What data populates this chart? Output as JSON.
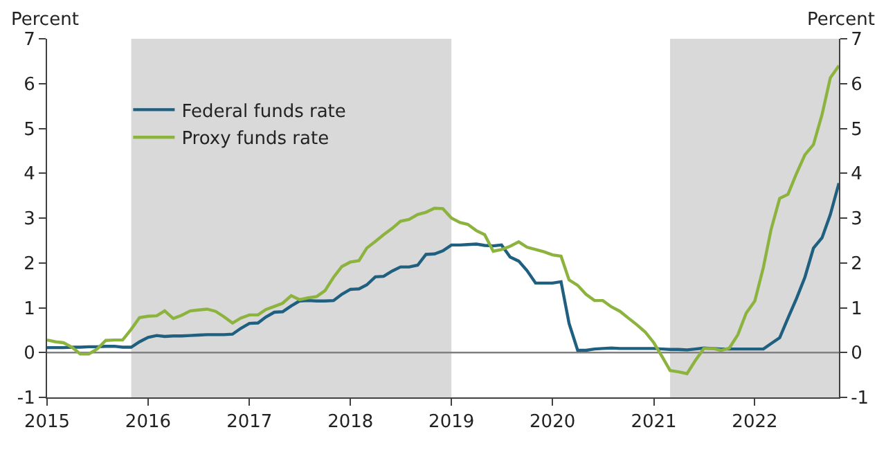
{
  "chart_data": {
    "type": "line",
    "ylabel": "Percent",
    "y2label": "Percent",
    "x": [
      "2015-01",
      "2015-02",
      "2015-03",
      "2015-04",
      "2015-05",
      "2015-06",
      "2015-07",
      "2015-08",
      "2015-09",
      "2015-10",
      "2015-11",
      "2015-12",
      "2016-01",
      "2016-02",
      "2016-03",
      "2016-04",
      "2016-05",
      "2016-06",
      "2016-07",
      "2016-08",
      "2016-09",
      "2016-10",
      "2016-11",
      "2016-12",
      "2017-01",
      "2017-02",
      "2017-03",
      "2017-04",
      "2017-05",
      "2017-06",
      "2017-07",
      "2017-08",
      "2017-09",
      "2017-10",
      "2017-11",
      "2017-12",
      "2018-01",
      "2018-02",
      "2018-03",
      "2018-04",
      "2018-05",
      "2018-06",
      "2018-07",
      "2018-08",
      "2018-09",
      "2018-10",
      "2018-11",
      "2018-12",
      "2019-01",
      "2019-02",
      "2019-03",
      "2019-04",
      "2019-05",
      "2019-06",
      "2019-07",
      "2019-08",
      "2019-09",
      "2019-10",
      "2019-11",
      "2019-12",
      "2020-01",
      "2020-02",
      "2020-03",
      "2020-04",
      "2020-05",
      "2020-06",
      "2020-07",
      "2020-08",
      "2020-09",
      "2020-10",
      "2020-11",
      "2020-12",
      "2021-01",
      "2021-02",
      "2021-03",
      "2021-04",
      "2021-05",
      "2021-06",
      "2021-07",
      "2021-08",
      "2021-09",
      "2021-10",
      "2021-11",
      "2021-12",
      "2022-01",
      "2022-02",
      "2022-03",
      "2022-04",
      "2022-05",
      "2022-06",
      "2022-07",
      "2022-08",
      "2022-09",
      "2022-10",
      "2022-11"
    ],
    "series": [
      {
        "name": "Federal funds rate",
        "color": "#1f5f7f",
        "values": [
          0.11,
          0.11,
          0.11,
          0.12,
          0.12,
          0.13,
          0.13,
          0.14,
          0.14,
          0.12,
          0.12,
          0.24,
          0.34,
          0.38,
          0.36,
          0.37,
          0.37,
          0.38,
          0.39,
          0.4,
          0.4,
          0.4,
          0.41,
          0.54,
          0.65,
          0.66,
          0.79,
          0.9,
          0.91,
          1.04,
          1.15,
          1.16,
          1.15,
          1.15,
          1.16,
          1.3,
          1.41,
          1.42,
          1.51,
          1.69,
          1.7,
          1.82,
          1.91,
          1.91,
          1.95,
          2.19,
          2.2,
          2.27,
          2.4,
          2.4,
          2.41,
          2.42,
          2.39,
          2.38,
          2.4,
          2.13,
          2.04,
          1.83,
          1.55,
          1.55,
          1.55,
          1.58,
          0.65,
          0.05,
          0.05,
          0.08,
          0.09,
          0.1,
          0.09,
          0.09,
          0.09,
          0.09,
          0.09,
          0.08,
          0.07,
          0.07,
          0.06,
          0.08,
          0.1,
          0.09,
          0.08,
          0.08,
          0.08,
          0.08,
          0.08,
          0.08,
          0.2,
          0.33,
          0.77,
          1.21,
          1.68,
          2.33,
          2.56,
          3.08,
          3.78
        ]
      },
      {
        "name": "Proxy funds rate",
        "color": "#8db33f",
        "values": [
          0.28,
          0.24,
          0.22,
          0.12,
          -0.03,
          -0.03,
          0.08,
          0.27,
          0.28,
          0.28,
          0.52,
          0.78,
          0.81,
          0.82,
          0.93,
          0.76,
          0.83,
          0.93,
          0.95,
          0.97,
          0.92,
          0.8,
          0.66,
          0.77,
          0.84,
          0.84,
          0.96,
          1.03,
          1.1,
          1.27,
          1.18,
          1.22,
          1.25,
          1.38,
          1.68,
          1.92,
          2.02,
          2.05,
          2.33,
          2.48,
          2.63,
          2.77,
          2.93,
          2.97,
          3.08,
          3.13,
          3.22,
          3.21,
          3.0,
          2.9,
          2.86,
          2.72,
          2.63,
          2.26,
          2.3,
          2.37,
          2.47,
          2.35,
          2.3,
          2.25,
          2.18,
          2.15,
          1.62,
          1.5,
          1.3,
          1.16,
          1.16,
          1.02,
          0.92,
          0.77,
          0.62,
          0.46,
          0.22,
          -0.1,
          -0.4,
          -0.43,
          -0.47,
          -0.17,
          0.09,
          0.09,
          0.05,
          0.1,
          0.4,
          0.88,
          1.15,
          1.9,
          2.75,
          3.44,
          3.53,
          4.0,
          4.41,
          4.64,
          5.31,
          6.13,
          6.4
        ]
      }
    ],
    "xlim": [
      "2015-01",
      "2022-11"
    ],
    "xticks": [
      {
        "value": "2015-01",
        "label": "2015"
      },
      {
        "value": "2016-01",
        "label": "2016"
      },
      {
        "value": "2017-01",
        "label": "2017"
      },
      {
        "value": "2018-01",
        "label": "2018"
      },
      {
        "value": "2019-01",
        "label": "2019"
      },
      {
        "value": "2020-01",
        "label": "2020"
      },
      {
        "value": "2021-01",
        "label": "2021"
      },
      {
        "value": "2022-01",
        "label": "2022"
      }
    ],
    "ylim": [
      -1,
      7
    ],
    "yticks": [
      -1,
      0,
      1,
      2,
      3,
      4,
      5,
      6,
      7
    ],
    "y2lim": [
      -1,
      7
    ],
    "y2ticks": [
      -1,
      0,
      1,
      2,
      3,
      4,
      5,
      6,
      7
    ],
    "bands": [
      {
        "axis": "x",
        "from": "2015-11",
        "to": "2019-01",
        "color": "#d9d9d9"
      },
      {
        "axis": "x",
        "from": "2021-03",
        "to": "2022-11",
        "color": "#d9d9d9"
      }
    ],
    "ref_lines": [
      {
        "axis": "y",
        "value": 0,
        "color": "#808080"
      }
    ],
    "legend": "top left",
    "grid": false,
    "marker": "none",
    "line_style": "solid"
  }
}
